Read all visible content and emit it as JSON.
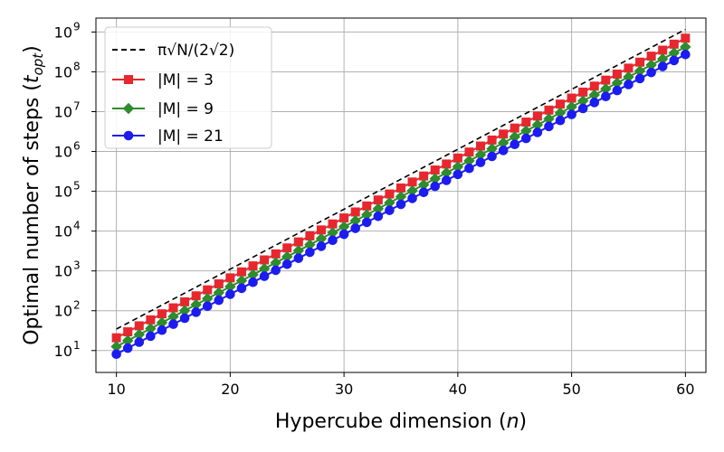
{
  "chart_data": {
    "type": "line",
    "xlabel": "Hypercube dimension (n)",
    "xlabel_parts": {
      "prefix": "Hypercube dimension (",
      "var": "n",
      "suffix": ")"
    },
    "ylabel": "Optimal number of steps (t_opt)",
    "ylabel_parts": {
      "prefix": "Optimal number of steps (",
      "var": "t",
      "sub": "opt",
      "suffix": ")"
    },
    "xlim": [
      8.2,
      61.8
    ],
    "ylim_log10": [
      0.45,
      9.35
    ],
    "yscale": "log",
    "grid": true,
    "legend_position": "top-left",
    "x_ticks": [
      10,
      20,
      30,
      40,
      50,
      60
    ],
    "y_ticks": [
      {
        "exp": 1,
        "label_base": "10",
        "label_exp": "1"
      },
      {
        "exp": 2,
        "label_base": "10",
        "label_exp": "2"
      },
      {
        "exp": 3,
        "label_base": "10",
        "label_exp": "3"
      },
      {
        "exp": 4,
        "label_base": "10",
        "label_exp": "4"
      },
      {
        "exp": 5,
        "label_base": "10",
        "label_exp": "5"
      },
      {
        "exp": 6,
        "label_base": "10",
        "label_exp": "6"
      },
      {
        "exp": 7,
        "label_base": "10",
        "label_exp": "7"
      },
      {
        "exp": 8,
        "label_base": "10",
        "label_exp": "8"
      },
      {
        "exp": 9,
        "label_base": "10",
        "label_exp": "9"
      }
    ],
    "x": [
      10,
      11,
      12,
      13,
      14,
      15,
      16,
      17,
      18,
      19,
      20,
      21,
      22,
      23,
      24,
      25,
      26,
      27,
      28,
      29,
      30,
      31,
      32,
      33,
      34,
      35,
      36,
      37,
      38,
      39,
      40,
      41,
      42,
      43,
      44,
      45,
      46,
      47,
      48,
      49,
      50,
      51,
      52,
      53,
      54,
      55,
      56,
      57,
      58,
      59,
      60
    ],
    "series": [
      {
        "name": "π√N/(2√2)",
        "legend_label": "π√N/(2√2)",
        "color": "#000000",
        "style": "dashed",
        "marker": "none",
        "log10_start": 1.54,
        "log10_slope": 0.1505
      },
      {
        "name": "|M| = 3",
        "legend_label": "|M| = 3",
        "color": "#e8262e",
        "style": "solid",
        "marker": "square",
        "log10_start": 1.32,
        "log10_slope": 0.1505
      },
      {
        "name": "|M| = 9",
        "legend_label": "|M| = 9",
        "color": "#2e8b2e",
        "style": "solid",
        "marker": "diamond",
        "log10_start": 1.1,
        "log10_slope": 0.1505
      },
      {
        "name": "|M| = 21",
        "legend_label": "|M| = 21",
        "color": "#1c1cf0",
        "style": "solid",
        "marker": "circle",
        "log10_start": 0.91,
        "log10_slope": 0.1505
      }
    ]
  }
}
